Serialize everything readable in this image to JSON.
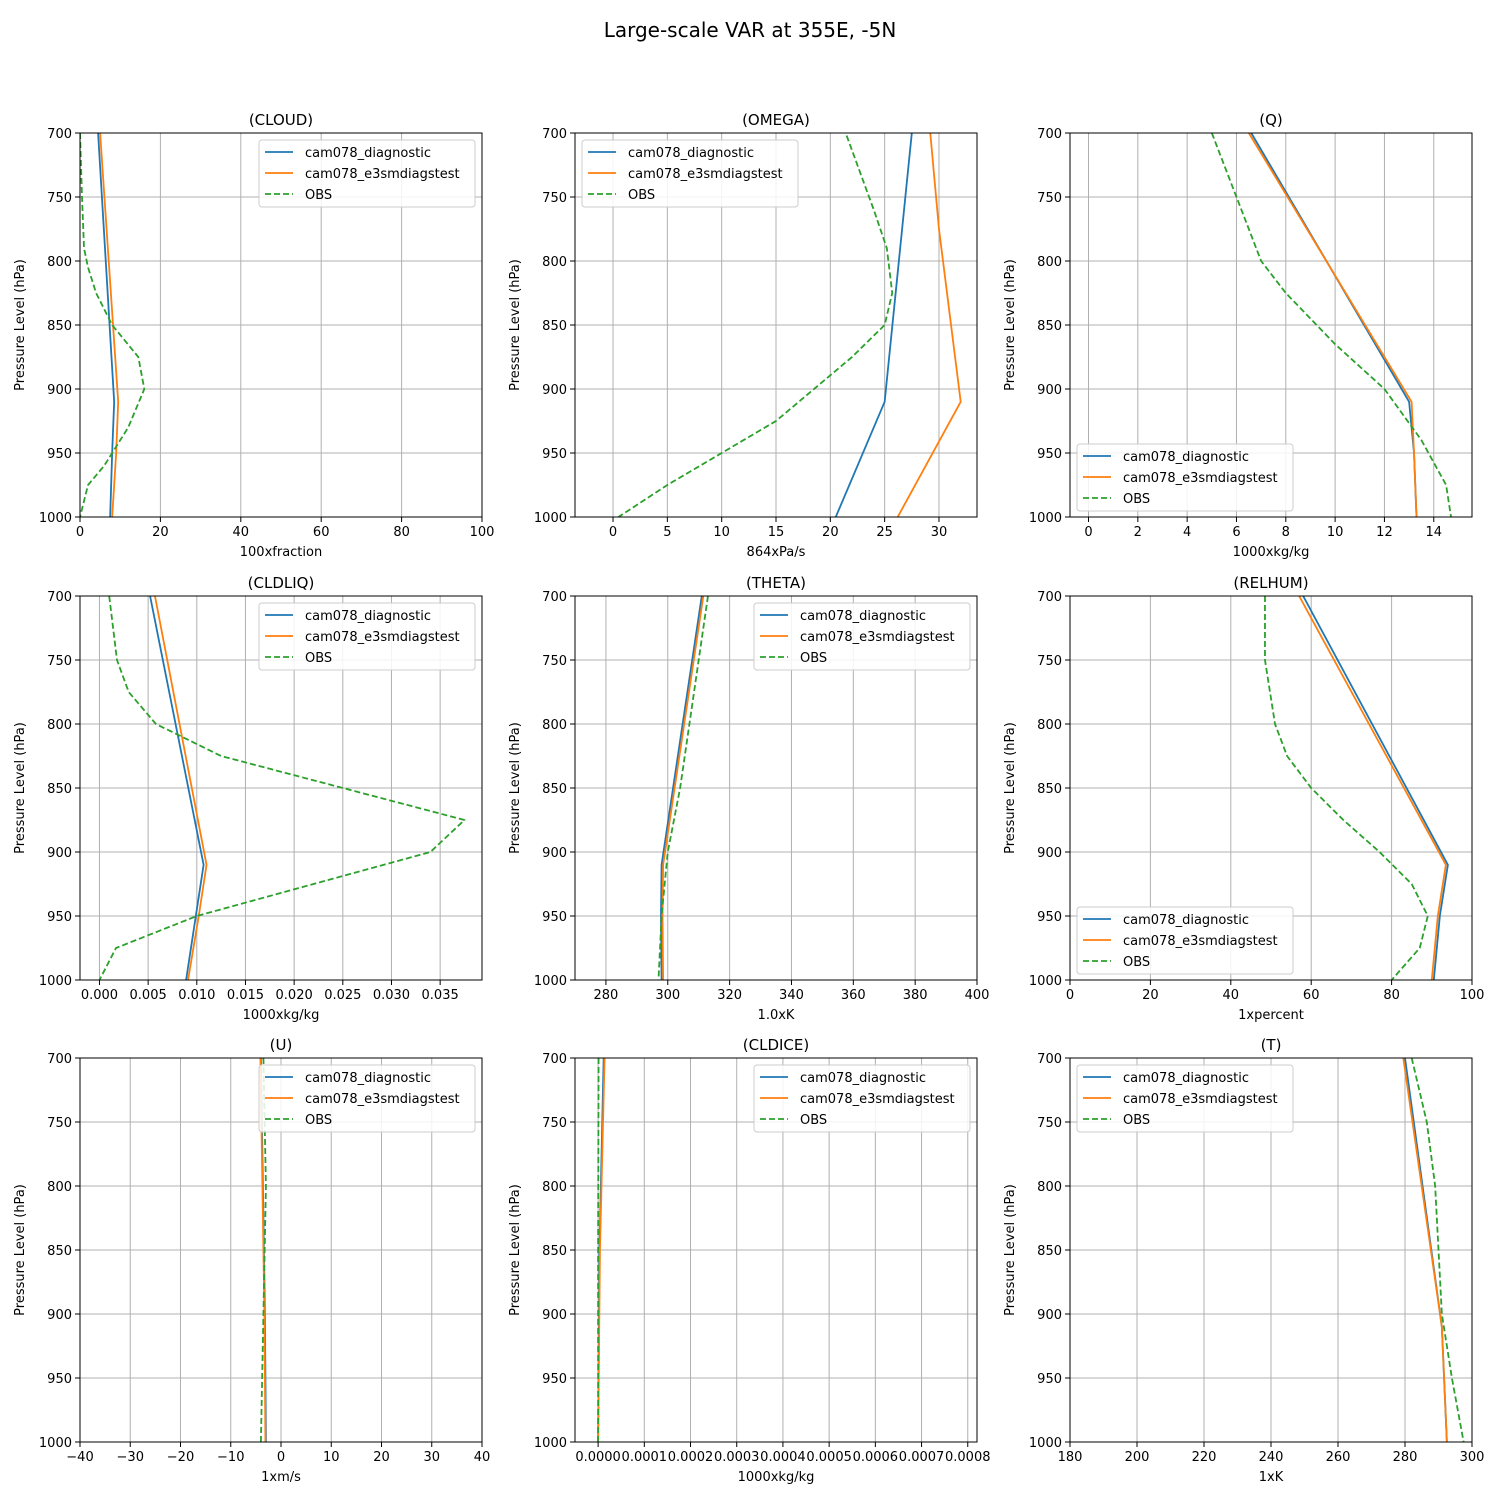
{
  "figure": {
    "title": "Large-scale VAR at 355E, -5N"
  },
  "legend_labels": [
    "cam078_diagnostic",
    "cam078_e3smdiagstest",
    "OBS"
  ],
  "colors": {
    "diagnostic": "#1f77b4",
    "e3smdiagstest": "#ff7f0e",
    "obs": "#2ca02c"
  },
  "chart_data": [
    {
      "type": "line",
      "title": "(CLOUD)",
      "xlabel": "100xfraction",
      "ylabel": "Pressure Level (hPa)",
      "xlim": [
        0,
        100
      ],
      "ylim": [
        1000,
        700
      ],
      "grid": true,
      "legend_position": "upper-right",
      "xticks": [
        0,
        20,
        40,
        60,
        80,
        100
      ],
      "xtick_labels": [
        "0",
        "20",
        "40",
        "60",
        "80",
        "100"
      ],
      "yticks": [
        700,
        750,
        800,
        850,
        900,
        950,
        1000
      ],
      "ytick_labels": [
        "700",
        "750",
        "800",
        "850",
        "900",
        "950",
        "1000"
      ],
      "series": [
        {
          "name": "cam078_diagnostic",
          "color": "#1f77b4",
          "dashed": false,
          "x": [
            4.5,
            8.5,
            8,
            7.5
          ],
          "y": [
            700,
            910,
            950,
            1000
          ]
        },
        {
          "name": "cam078_e3smdiagstest",
          "color": "#ff7f0e",
          "dashed": false,
          "x": [
            5,
            9.5,
            9,
            8
          ],
          "y": [
            700,
            910,
            950,
            1000
          ]
        },
        {
          "name": "OBS",
          "color": "#2ca02c",
          "dashed": true,
          "x": [
            0,
            0.5,
            1,
            2,
            4,
            8,
            14.5,
            16,
            12,
            6,
            2,
            0
          ],
          "y": [
            700,
            750,
            790,
            805,
            825,
            850,
            875,
            900,
            930,
            960,
            975,
            1000
          ]
        }
      ]
    },
    {
      "type": "line",
      "title": "(OMEGA)",
      "xlabel": "864xPa/s",
      "ylabel": "Pressure Level (hPa)",
      "xlim": [
        -3.5,
        33.5
      ],
      "ylim": [
        1000,
        700
      ],
      "grid": true,
      "legend_position": "upper-left",
      "xticks": [
        0,
        5,
        10,
        15,
        20,
        25,
        30
      ],
      "xtick_labels": [
        "0",
        "5",
        "10",
        "15",
        "20",
        "25",
        "30"
      ],
      "yticks": [
        700,
        750,
        800,
        850,
        900,
        950,
        1000
      ],
      "ytick_labels": [
        "700",
        "750",
        "800",
        "850",
        "900",
        "950",
        "1000"
      ],
      "series": [
        {
          "name": "cam078_diagnostic",
          "color": "#1f77b4",
          "dashed": false,
          "x": [
            27.5,
            25,
            20.5
          ],
          "y": [
            700,
            910,
            1000
          ]
        },
        {
          "name": "cam078_e3smdiagstest",
          "color": "#ff7f0e",
          "dashed": false,
          "x": [
            29.2,
            30,
            32,
            26.2
          ],
          "y": [
            700,
            775,
            910,
            1000
          ]
        },
        {
          "name": "OBS",
          "color": "#2ca02c",
          "dashed": true,
          "x": [
            21.5,
            24,
            25.2,
            25.7,
            25,
            22,
            18.5,
            15,
            10,
            5,
            0.5
          ],
          "y": [
            702,
            760,
            790,
            825,
            850,
            875,
            900,
            925,
            950,
            975,
            1000
          ]
        }
      ]
    },
    {
      "type": "line",
      "title": "(Q)",
      "xlabel": "1000xkg/kg",
      "ylabel": "Pressure Level (hPa)",
      "xlim": [
        -0.75,
        15.55
      ],
      "ylim": [
        1000,
        700
      ],
      "grid": true,
      "legend_position": "lower-left",
      "xticks": [
        0,
        2,
        4,
        6,
        8,
        10,
        12,
        14
      ],
      "xtick_labels": [
        "0",
        "2",
        "4",
        "6",
        "8",
        "10",
        "12",
        "14"
      ],
      "yticks": [
        700,
        750,
        800,
        850,
        900,
        950,
        1000
      ],
      "ytick_labels": [
        "700",
        "750",
        "800",
        "850",
        "900",
        "950",
        "1000"
      ],
      "series": [
        {
          "name": "cam078_diagnostic",
          "color": "#1f77b4",
          "dashed": false,
          "x": [
            6.6,
            13,
            13.2,
            13.3
          ],
          "y": [
            700,
            910,
            950,
            1000
          ]
        },
        {
          "name": "cam078_e3smdiagstest",
          "color": "#ff7f0e",
          "dashed": false,
          "x": [
            6.5,
            13.1,
            13.2,
            13.3
          ],
          "y": [
            700,
            910,
            950,
            1000
          ]
        },
        {
          "name": "OBS",
          "color": "#2ca02c",
          "dashed": true,
          "x": [
            5,
            6,
            7,
            8,
            10,
            12,
            13.5,
            14.5,
            14.7
          ],
          "y": [
            700,
            750,
            800,
            825,
            865,
            900,
            940,
            975,
            1000
          ]
        }
      ]
    },
    {
      "type": "line",
      "title": "(CLDLIQ)",
      "xlabel": "1000xkg/kg",
      "ylabel": "Pressure Level (hPa)",
      "xlim": [
        -0.002,
        0.0393
      ],
      "ylim": [
        1000,
        700
      ],
      "grid": true,
      "legend_position": "upper-right",
      "xticks": [
        0,
        0.005,
        0.01,
        0.015,
        0.02,
        0.025,
        0.03,
        0.035
      ],
      "xtick_labels": [
        "0.000",
        "0.005",
        "0.010",
        "0.015",
        "0.020",
        "0.025",
        "0.030",
        "0.035"
      ],
      "yticks": [
        700,
        750,
        800,
        850,
        900,
        950,
        1000
      ],
      "ytick_labels": [
        "700",
        "750",
        "800",
        "850",
        "900",
        "950",
        "1000"
      ],
      "series": [
        {
          "name": "cam078_diagnostic",
          "color": "#1f77b4",
          "dashed": false,
          "x": [
            0.0052,
            0.0107,
            0.0099,
            0.0089
          ],
          "y": [
            700,
            910,
            950,
            1000
          ]
        },
        {
          "name": "cam078_e3smdiagstest",
          "color": "#ff7f0e",
          "dashed": false,
          "x": [
            0.0057,
            0.011,
            0.0102,
            0.0091
          ],
          "y": [
            700,
            910,
            950,
            1000
          ]
        },
        {
          "name": "OBS",
          "color": "#2ca02c",
          "dashed": true,
          "x": [
            0.001,
            0.0018,
            0.003,
            0.0058,
            0.0125,
            0.0375,
            0.034,
            0.01,
            0.0017,
            0
          ],
          "y": [
            700,
            750,
            775,
            800,
            825,
            875,
            900,
            950,
            975,
            1000
          ]
        }
      ]
    },
    {
      "type": "line",
      "title": "(THETA)",
      "xlabel": "1.0xK",
      "ylabel": "Pressure Level (hPa)",
      "xlim": [
        270,
        400
      ],
      "ylim": [
        1000,
        700
      ],
      "grid": true,
      "legend_position": "upper-right",
      "xticks": [
        280,
        300,
        320,
        340,
        360,
        380,
        400
      ],
      "xtick_labels": [
        "280",
        "300",
        "320",
        "340",
        "360",
        "380",
        "400"
      ],
      "yticks": [
        700,
        750,
        800,
        850,
        900,
        950,
        1000
      ],
      "ytick_labels": [
        "700",
        "750",
        "800",
        "850",
        "900",
        "950",
        "1000"
      ],
      "series": [
        {
          "name": "cam078_diagnostic",
          "color": "#1f77b4",
          "dashed": false,
          "x": [
            311,
            298,
            297.8,
            298
          ],
          "y": [
            700,
            910,
            950,
            1000
          ]
        },
        {
          "name": "cam078_e3smdiagstest",
          "color": "#ff7f0e",
          "dashed": false,
          "x": [
            311.5,
            298.5,
            298.3,
            298.5
          ],
          "y": [
            700,
            910,
            950,
            1000
          ]
        },
        {
          "name": "OBS",
          "color": "#2ca02c",
          "dashed": true,
          "x": [
            313,
            310,
            307,
            304,
            300,
            298,
            297
          ],
          "y": [
            700,
            750,
            800,
            850,
            900,
            950,
            1000
          ]
        }
      ]
    },
    {
      "type": "line",
      "title": "(RELHUM)",
      "xlabel": "1xpercent",
      "ylabel": "Pressure Level (hPa)",
      "xlim": [
        0,
        100
      ],
      "ylim": [
        1000,
        700
      ],
      "grid": true,
      "legend_position": "lower-left",
      "xticks": [
        0,
        20,
        40,
        60,
        80,
        100
      ],
      "xtick_labels": [
        "0",
        "20",
        "40",
        "60",
        "80",
        "100"
      ],
      "yticks": [
        700,
        750,
        800,
        850,
        900,
        950,
        1000
      ],
      "ytick_labels": [
        "700",
        "750",
        "800",
        "850",
        "900",
        "950",
        "1000"
      ],
      "series": [
        {
          "name": "cam078_diagnostic",
          "color": "#1f77b4",
          "dashed": false,
          "x": [
            58,
            94,
            92,
            90.5
          ],
          "y": [
            700,
            910,
            950,
            1000
          ]
        },
        {
          "name": "cam078_e3smdiagstest",
          "color": "#ff7f0e",
          "dashed": false,
          "x": [
            57,
            93.5,
            91.5,
            90
          ],
          "y": [
            700,
            910,
            950,
            1000
          ]
        },
        {
          "name": "OBS",
          "color": "#2ca02c",
          "dashed": true,
          "x": [
            48.5,
            48.5,
            51,
            54,
            60,
            68,
            77,
            85,
            89,
            87,
            80
          ],
          "y": [
            700,
            750,
            800,
            825,
            850,
            875,
            900,
            925,
            950,
            975,
            1000
          ]
        }
      ]
    },
    {
      "type": "line",
      "title": "(U)",
      "xlabel": "1xm/s",
      "ylabel": "Pressure Level (hPa)",
      "xlim": [
        -40,
        40
      ],
      "ylim": [
        1000,
        700
      ],
      "grid": true,
      "legend_position": "upper-right",
      "xticks": [
        -40,
        -30,
        -20,
        -10,
        0,
        10,
        20,
        30,
        40
      ],
      "xtick_labels": [
        "−40",
        "−30",
        "−20",
        "−10",
        "0",
        "10",
        "20",
        "30",
        "40"
      ],
      "yticks": [
        700,
        750,
        800,
        850,
        900,
        950,
        1000
      ],
      "ytick_labels": [
        "700",
        "750",
        "800",
        "850",
        "900",
        "950",
        "1000"
      ],
      "series": [
        {
          "name": "cam078_diagnostic",
          "color": "#1f77b4",
          "dashed": false,
          "x": [
            -4,
            -3.2,
            -3
          ],
          "y": [
            700,
            900,
            1000
          ]
        },
        {
          "name": "cam078_e3smdiagstest",
          "color": "#ff7f0e",
          "dashed": false,
          "x": [
            -4.1,
            -3.3,
            -3.1
          ],
          "y": [
            700,
            900,
            1000
          ]
        },
        {
          "name": "OBS",
          "color": "#2ca02c",
          "dashed": true,
          "x": [
            -3.5,
            -3,
            -3.5,
            -4
          ],
          "y": [
            700,
            800,
            900,
            1000
          ]
        }
      ]
    },
    {
      "type": "line",
      "title": "(CLDICE)",
      "xlabel": "1000xkg/kg",
      "ylabel": "Pressure Level (hPa)",
      "xlim": [
        -5e-05,
        0.00082
      ],
      "ylim": [
        1000,
        700
      ],
      "grid": true,
      "legend_position": "upper-right",
      "xticks": [
        0,
        0.0001,
        0.0002,
        0.0003,
        0.0004,
        0.0005,
        0.0006,
        0.0007,
        0.0008
      ],
      "xtick_labels": [
        "0.0000",
        "0.0001",
        "0.0002",
        "0.0003",
        "0.0004",
        "0.0005",
        "0.0006",
        "0.0007",
        "0.0008"
      ],
      "yticks": [
        700,
        750,
        800,
        850,
        900,
        950,
        1000
      ],
      "ytick_labels": [
        "700",
        "750",
        "800",
        "850",
        "900",
        "950",
        "1000"
      ],
      "series": [
        {
          "name": "cam078_diagnostic",
          "color": "#1f77b4",
          "dashed": false,
          "x": [
            1.2e-05,
            3e-06,
            0
          ],
          "y": [
            700,
            850,
            1000
          ]
        },
        {
          "name": "cam078_e3smdiagstest",
          "color": "#ff7f0e",
          "dashed": false,
          "x": [
            1.4e-05,
            4e-06,
            0
          ],
          "y": [
            700,
            850,
            1000
          ]
        },
        {
          "name": "OBS",
          "color": "#2ca02c",
          "dashed": true,
          "x": [
            1e-06,
            0,
            0
          ],
          "y": [
            700,
            850,
            1000
          ]
        }
      ]
    },
    {
      "type": "line",
      "title": "(T)",
      "xlabel": "1xK",
      "ylabel": "Pressure Level (hPa)",
      "xlim": [
        180,
        300
      ],
      "ylim": [
        1000,
        700
      ],
      "grid": true,
      "legend_position": "upper-left",
      "xticks": [
        180,
        200,
        220,
        240,
        260,
        280,
        300
      ],
      "xtick_labels": [
        "180",
        "200",
        "220",
        "240",
        "260",
        "280",
        "300"
      ],
      "yticks": [
        700,
        750,
        800,
        850,
        900,
        950,
        1000
      ],
      "ytick_labels": [
        "700",
        "750",
        "800",
        "850",
        "900",
        "950",
        "1000"
      ],
      "series": [
        {
          "name": "cam078_diagnostic",
          "color": "#1f77b4",
          "dashed": false,
          "x": [
            280,
            291,
            292.5
          ],
          "y": [
            700,
            910,
            1000
          ]
        },
        {
          "name": "cam078_e3smdiagstest",
          "color": "#ff7f0e",
          "dashed": false,
          "x": [
            279.5,
            291,
            292.5
          ],
          "y": [
            700,
            910,
            1000
          ]
        },
        {
          "name": "OBS",
          "color": "#2ca02c",
          "dashed": true,
          "x": [
            282,
            286.5,
            289,
            290,
            291,
            294,
            297.5
          ],
          "y": [
            700,
            750,
            800,
            850,
            900,
            950,
            1000
          ]
        }
      ]
    }
  ]
}
